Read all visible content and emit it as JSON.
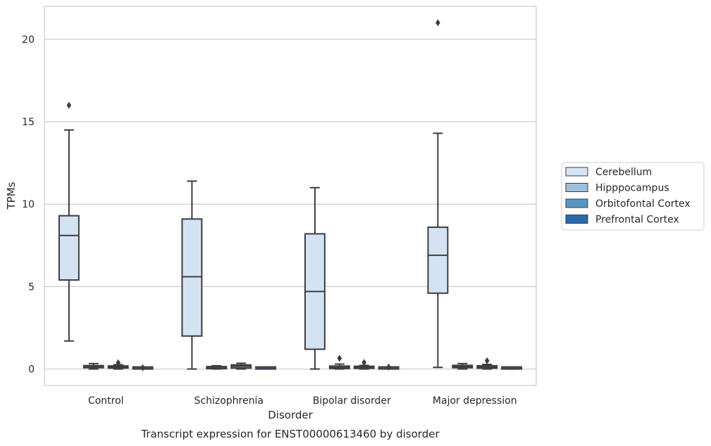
{
  "chart_data": {
    "type": "boxplot",
    "caption": "Transcript expression for ENST00000613460 by disorder",
    "xlabel": "Disorder",
    "ylabel": "TPMs",
    "ylim": [
      -1,
      22
    ],
    "yticks": [
      0,
      5,
      10,
      15,
      20
    ],
    "grid": true,
    "legend_position": "right",
    "categories": [
      "Control",
      "Schizophrenia",
      "Bipolar disorder",
      "Major depression"
    ],
    "series": [
      {
        "name": "Cerebellum",
        "color": "#d4e3f3",
        "boxes": [
          {
            "whislo": 1.7,
            "q1": 5.4,
            "med": 8.1,
            "q3": 9.3,
            "whishi": 14.5,
            "fliers": [
              16.0
            ]
          },
          {
            "whislo": 0.0,
            "q1": 2.0,
            "med": 5.6,
            "q3": 9.1,
            "whishi": 11.4,
            "fliers": []
          },
          {
            "whislo": 0.0,
            "q1": 1.2,
            "med": 4.7,
            "q3": 8.2,
            "whishi": 11.0,
            "fliers": []
          },
          {
            "whislo": 0.1,
            "q1": 4.6,
            "med": 6.9,
            "q3": 8.6,
            "whishi": 14.3,
            "fliers": [
              21.0
            ]
          }
        ]
      },
      {
        "name": "Hipppocampus",
        "color": "#9dc1dd",
        "boxes": [
          {
            "whislo": 0.0,
            "q1": 0.08,
            "med": 0.15,
            "q3": 0.2,
            "whishi": 0.33,
            "fliers": []
          },
          {
            "whislo": 0.0,
            "q1": 0.02,
            "med": 0.06,
            "q3": 0.12,
            "whishi": 0.2,
            "fliers": []
          },
          {
            "whislo": 0.0,
            "q1": 0.03,
            "med": 0.1,
            "q3": 0.18,
            "whishi": 0.3,
            "fliers": [
              0.65
            ]
          },
          {
            "whislo": 0.0,
            "q1": 0.08,
            "med": 0.15,
            "q3": 0.22,
            "whishi": 0.33,
            "fliers": []
          }
        ]
      },
      {
        "name": "Orbitofontal Cortex",
        "color": "#5696c6",
        "boxes": [
          {
            "whislo": 0.0,
            "q1": 0.06,
            "med": 0.12,
            "q3": 0.18,
            "whishi": 0.26,
            "fliers": [
              0.38
            ]
          },
          {
            "whislo": 0.0,
            "q1": 0.06,
            "med": 0.18,
            "q3": 0.25,
            "whishi": 0.35,
            "fliers": []
          },
          {
            "whislo": 0.0,
            "q1": 0.04,
            "med": 0.1,
            "q3": 0.15,
            "whishi": 0.22,
            "fliers": [
              0.4
            ]
          },
          {
            "whislo": 0.0,
            "q1": 0.05,
            "med": 0.12,
            "q3": 0.2,
            "whishi": 0.28,
            "fliers": [
              0.5
            ]
          }
        ]
      },
      {
        "name": "Prefrontal Cortex",
        "color": "#2a6aac",
        "boxes": [
          {
            "whislo": 0.0,
            "q1": 0.0,
            "med": 0.01,
            "q3": 0.02,
            "whishi": 0.04,
            "fliers": [
              0.08
            ]
          },
          {
            "whislo": 0.0,
            "q1": 0.0,
            "med": 0.01,
            "q3": 0.02,
            "whishi": 0.04,
            "fliers": []
          },
          {
            "whislo": 0.0,
            "q1": 0.0,
            "med": 0.01,
            "q3": 0.02,
            "whishi": 0.04,
            "fliers": [
              0.12
            ]
          },
          {
            "whislo": 0.0,
            "q1": 0.0,
            "med": 0.01,
            "q3": 0.02,
            "whishi": 0.04,
            "fliers": []
          }
        ]
      }
    ]
  }
}
